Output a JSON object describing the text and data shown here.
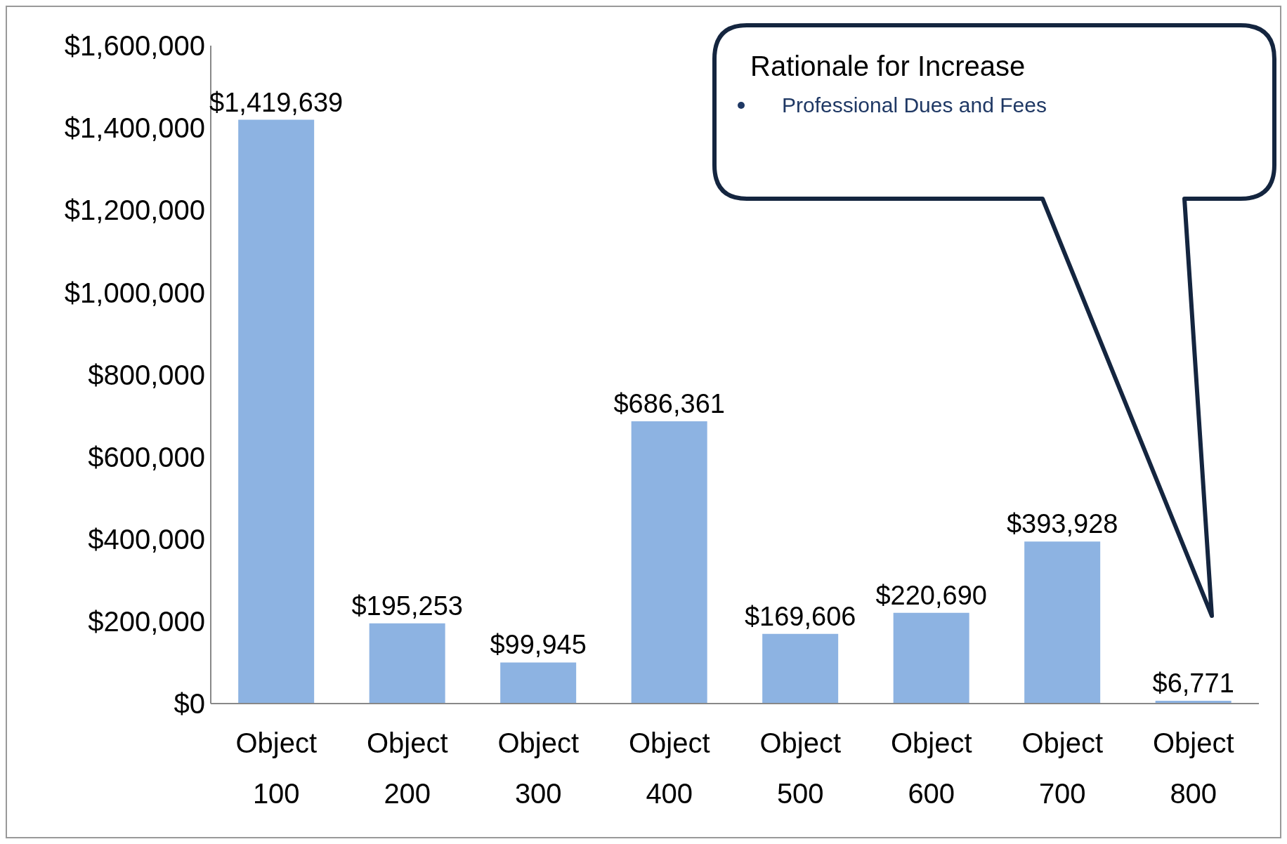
{
  "chart_data": {
    "type": "bar",
    "categories": [
      "Object 100",
      "Object 200",
      "Object 300",
      "Object 400",
      "Object 500",
      "Object 600",
      "Object 700",
      "Object 800"
    ],
    "values": [
      1419639,
      195253,
      99945,
      686361,
      169606,
      220690,
      393928,
      6771
    ],
    "value_labels": [
      "$1,419,639",
      "$195,253",
      "$99,945",
      "$686,361",
      "$169,606",
      "$220,690",
      "$393,928",
      "$6,771"
    ],
    "color": "#8db3e2",
    "ylim": [
      0,
      1600000
    ],
    "yticks": [
      {
        "value": 0,
        "label": "$0"
      },
      {
        "value": 200000,
        "label": "$200,000"
      },
      {
        "value": 400000,
        "label": "$400,000"
      },
      {
        "value": 600000,
        "label": "$600,000"
      },
      {
        "value": 800000,
        "label": "$800,000"
      },
      {
        "value": 1000000,
        "label": "$1,000,000"
      },
      {
        "value": 1200000,
        "label": "$1,200,000"
      },
      {
        "value": 1400000,
        "label": "$1,400,000"
      },
      {
        "value": 1600000,
        "label": "$1,600,000"
      }
    ],
    "grid": false,
    "legend": false,
    "annotations": [
      "Rationale for Increase",
      "Professional Dues and Fees"
    ]
  }
}
